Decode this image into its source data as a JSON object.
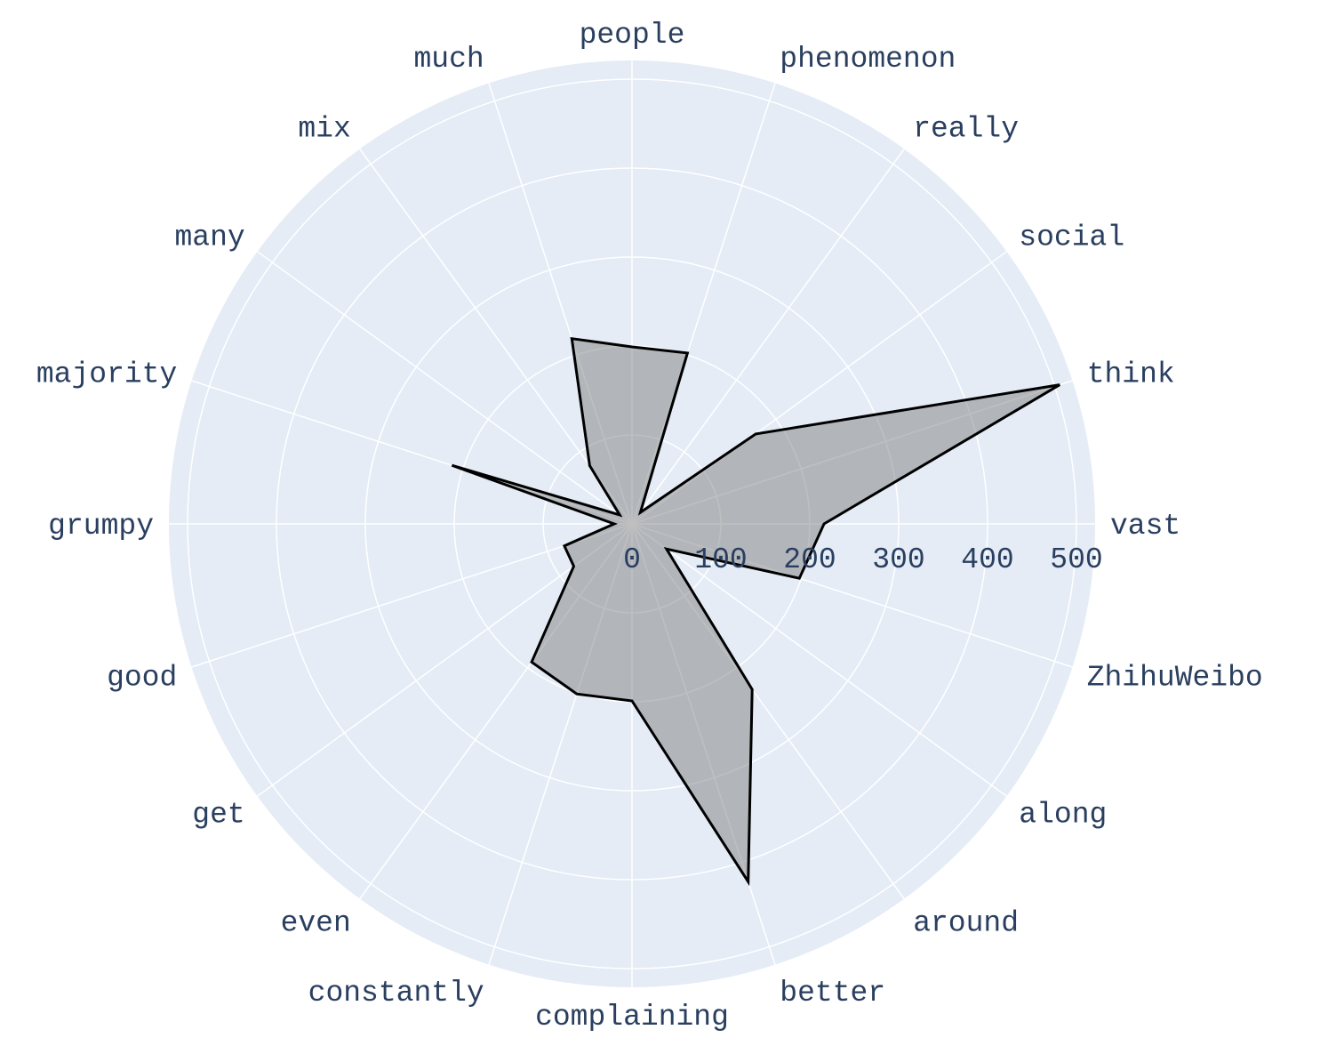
{
  "chart_data": {
    "type": "radar",
    "title": "",
    "categories": [
      "vast",
      "think",
      "social",
      "really",
      "phenomenon",
      "people",
      "much",
      "mix",
      "many",
      "majority",
      "grumpy",
      "good",
      "get",
      "even",
      "constantly",
      "complaining",
      "better",
      "around",
      "along",
      "ZhihuWeibo"
    ],
    "series": [
      {
        "values": [
          216,
          506,
          172,
          16,
          202,
          199,
          219,
          81,
          17,
          213,
          20,
          80,
          81,
          192,
          201,
          199,
          423,
          230,
          48,
          198
        ]
      }
    ],
    "radial_axis": {
      "range": [
        0,
        500
      ],
      "ticks": [
        "0",
        "100",
        "200",
        "300",
        "400",
        "500"
      ]
    },
    "angular_direction": "counterclockwise",
    "start_angle_deg": 0,
    "grid": true,
    "legend": "none",
    "colors": {
      "polar_background": "#e5ecf6",
      "grid": "#ffffff",
      "fill": "rgba(128,128,128,0.5)",
      "line": "#000000",
      "text": "#2a3f5f"
    }
  }
}
